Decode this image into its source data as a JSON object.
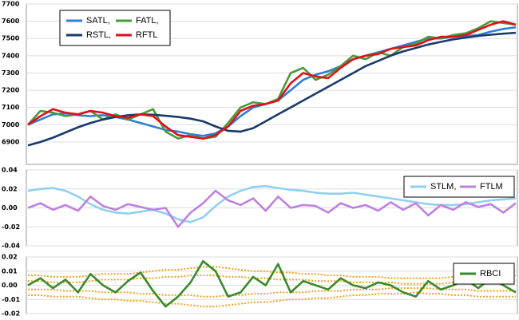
{
  "chart_data": [
    {
      "type": "line",
      "ylim": [
        6770,
        7700
      ],
      "yticks": [
        6900,
        7000,
        7100,
        7200,
        7300,
        7400,
        7500,
        7600,
        7700
      ],
      "grid": true,
      "legend": "upper left",
      "series": [
        {
          "name": "SATL,",
          "color": "#2f7fd6",
          "values": [
            7000,
            7030,
            7060,
            7065,
            7055,
            7050,
            7055,
            7045,
            7030,
            7010,
            6990,
            6970,
            6960,
            6945,
            6935,
            6950,
            6990,
            7050,
            7100,
            7120,
            7140,
            7200,
            7260,
            7290,
            7310,
            7340,
            7380,
            7400,
            7420,
            7440,
            7460,
            7480,
            7500,
            7500,
            7510,
            7515,
            7520,
            7540,
            7555,
            7565
          ]
        },
        {
          "name": "FATL,",
          "color": "#4a9a3a",
          "values": [
            7000,
            7080,
            7070,
            7050,
            7060,
            7080,
            7030,
            7060,
            7030,
            7060,
            7090,
            6960,
            6920,
            6940,
            6920,
            6930,
            7010,
            7100,
            7130,
            7120,
            7150,
            7300,
            7330,
            7260,
            7290,
            7340,
            7400,
            7380,
            7420,
            7400,
            7450,
            7470,
            7510,
            7500,
            7520,
            7530,
            7560,
            7600,
            7590,
            7580
          ]
        },
        {
          "name": "RSTL,",
          "color": "#1a3a6a",
          "values": [
            6880,
            6900,
            6925,
            6955,
            6985,
            7010,
            7030,
            7045,
            7055,
            7060,
            7058,
            7052,
            7045,
            7035,
            7020,
            6990,
            6965,
            6960,
            6980,
            7020,
            7060,
            7100,
            7140,
            7180,
            7220,
            7260,
            7300,
            7340,
            7370,
            7400,
            7425,
            7445,
            7465,
            7480,
            7495,
            7505,
            7515,
            7522,
            7528,
            7533
          ]
        },
        {
          "name": "RFTL",
          "color": "#e0101a",
          "values": [
            7000,
            7050,
            7090,
            7070,
            7060,
            7080,
            7070,
            7050,
            7040,
            7060,
            7050,
            6990,
            6940,
            6930,
            6920,
            6940,
            6990,
            7080,
            7110,
            7120,
            7140,
            7240,
            7300,
            7280,
            7270,
            7330,
            7380,
            7400,
            7410,
            7440,
            7450,
            7460,
            7490,
            7510,
            7510,
            7520,
            7550,
            7580,
            7600,
            7580
          ]
        }
      ]
    },
    {
      "type": "line",
      "ylim": [
        -0.04,
        0.04
      ],
      "yticks": [
        -0.04,
        -0.02,
        {
          "value": 0,
          "label": "0.00"
        },
        0.02,
        0.04
      ],
      "grid": true,
      "legend": "upper right",
      "series": [
        {
          "name": "STLM,",
          "color": "#90d0f0",
          "values": [
            0.018,
            0.02,
            0.021,
            0.018,
            0.012,
            0.004,
            -0.002,
            -0.005,
            -0.006,
            -0.004,
            -0.002,
            -0.006,
            -0.012,
            -0.015,
            -0.01,
            0.002,
            0.012,
            0.018,
            0.022,
            0.023,
            0.021,
            0.019,
            0.018,
            0.016,
            0.015,
            0.015,
            0.016,
            0.014,
            0.012,
            0.01,
            0.008,
            0.006,
            0.004,
            0.003,
            0.003,
            0.004,
            0.006,
            0.008,
            0.009,
            0.01
          ]
        },
        {
          "name": "FTLM",
          "color": "#c080e0",
          "values": [
            0.0,
            0.005,
            -0.002,
            0.003,
            -0.003,
            0.012,
            0.002,
            -0.002,
            0.004,
            0.001,
            -0.002,
            0.0,
            -0.02,
            -0.005,
            0.005,
            0.018,
            0.008,
            0.003,
            0.01,
            -0.003,
            0.012,
            0.0,
            0.003,
            0.002,
            -0.005,
            0.005,
            0.0,
            0.003,
            -0.003,
            0.006,
            -0.002,
            0.005,
            -0.008,
            0.003,
            -0.002,
            0.006,
            0.001,
            0.004,
            -0.005,
            0.005
          ]
        }
      ]
    },
    {
      "type": "line",
      "ylim": [
        -0.02,
        0.02
      ],
      "yticks": [
        -0.02,
        -0.01,
        {
          "value": 0,
          "label": "0.00"
        },
        0.01,
        0.02
      ],
      "grid": true,
      "legend": "upper right",
      "series": [
        {
          "color": "#f0a020",
          "values": [
            0.007,
            0.007,
            0.006,
            0.006,
            0.006,
            0.007,
            0.008,
            0.008,
            0.008,
            0.009,
            0.01,
            0.011,
            0.011,
            0.012,
            0.013,
            0.013,
            0.012,
            0.011,
            0.01,
            0.01,
            0.009,
            0.009,
            0.008,
            0.008,
            0.007,
            0.007,
            0.006,
            0.006,
            0.006,
            0.005,
            0.005,
            0.005,
            0.005,
            0.005,
            0.006,
            0.006,
            0.007,
            0.007,
            0.007,
            0.007
          ]
        },
        {
          "color": "#f0a020",
          "values": [
            0.003,
            0.003,
            0.002,
            0.002,
            0.002,
            0.003,
            0.004,
            0.004,
            0.004,
            0.005,
            0.005,
            0.006,
            0.006,
            0.007,
            0.007,
            0.007,
            0.006,
            0.006,
            0.005,
            0.005,
            0.004,
            0.004,
            0.004,
            0.003,
            0.003,
            0.003,
            0.002,
            0.002,
            0.002,
            0.002,
            0.001,
            0.001,
            0.001,
            0.001,
            0.002,
            0.002,
            0.003,
            0.003,
            0.003,
            0.003
          ]
        },
        {
          "color": "#f0a020",
          "values": [
            -0.003,
            -0.003,
            -0.003,
            -0.004,
            -0.004,
            -0.004,
            -0.005,
            -0.005,
            -0.005,
            -0.006,
            -0.006,
            -0.007,
            -0.007,
            -0.007,
            -0.008,
            -0.008,
            -0.007,
            -0.007,
            -0.006,
            -0.006,
            -0.005,
            -0.005,
            -0.005,
            -0.004,
            -0.004,
            -0.004,
            -0.003,
            -0.003,
            -0.003,
            -0.002,
            -0.002,
            -0.002,
            -0.002,
            -0.003,
            -0.003,
            -0.003,
            -0.004,
            -0.004,
            -0.004,
            -0.004
          ]
        },
        {
          "color": "#f0a020",
          "values": [
            -0.007,
            -0.007,
            -0.008,
            -0.008,
            -0.008,
            -0.009,
            -0.01,
            -0.01,
            -0.011,
            -0.011,
            -0.012,
            -0.013,
            -0.013,
            -0.014,
            -0.015,
            -0.015,
            -0.014,
            -0.013,
            -0.012,
            -0.012,
            -0.011,
            -0.01,
            -0.01,
            -0.009,
            -0.009,
            -0.008,
            -0.007,
            -0.007,
            -0.006,
            -0.006,
            -0.006,
            -0.005,
            -0.006,
            -0.006,
            -0.007,
            -0.007,
            -0.008,
            -0.008,
            -0.008,
            -0.008
          ]
        },
        {
          "name": "RBCI",
          "color": "#3a8a2a",
          "values": [
            0.0,
            0.005,
            -0.002,
            0.004,
            -0.005,
            0.008,
            0.0,
            -0.005,
            0.003,
            0.009,
            -0.004,
            -0.015,
            -0.008,
            0.002,
            0.017,
            0.01,
            -0.008,
            -0.005,
            0.006,
            0.0,
            0.015,
            -0.005,
            0.003,
            0.0,
            -0.003,
            0.005,
            0.0,
            -0.002,
            0.002,
            0.0,
            -0.005,
            -0.008,
            0.003,
            -0.003,
            0.0,
            0.004,
            -0.002,
            0.005,
            0.0,
            -0.005
          ]
        }
      ]
    }
  ]
}
